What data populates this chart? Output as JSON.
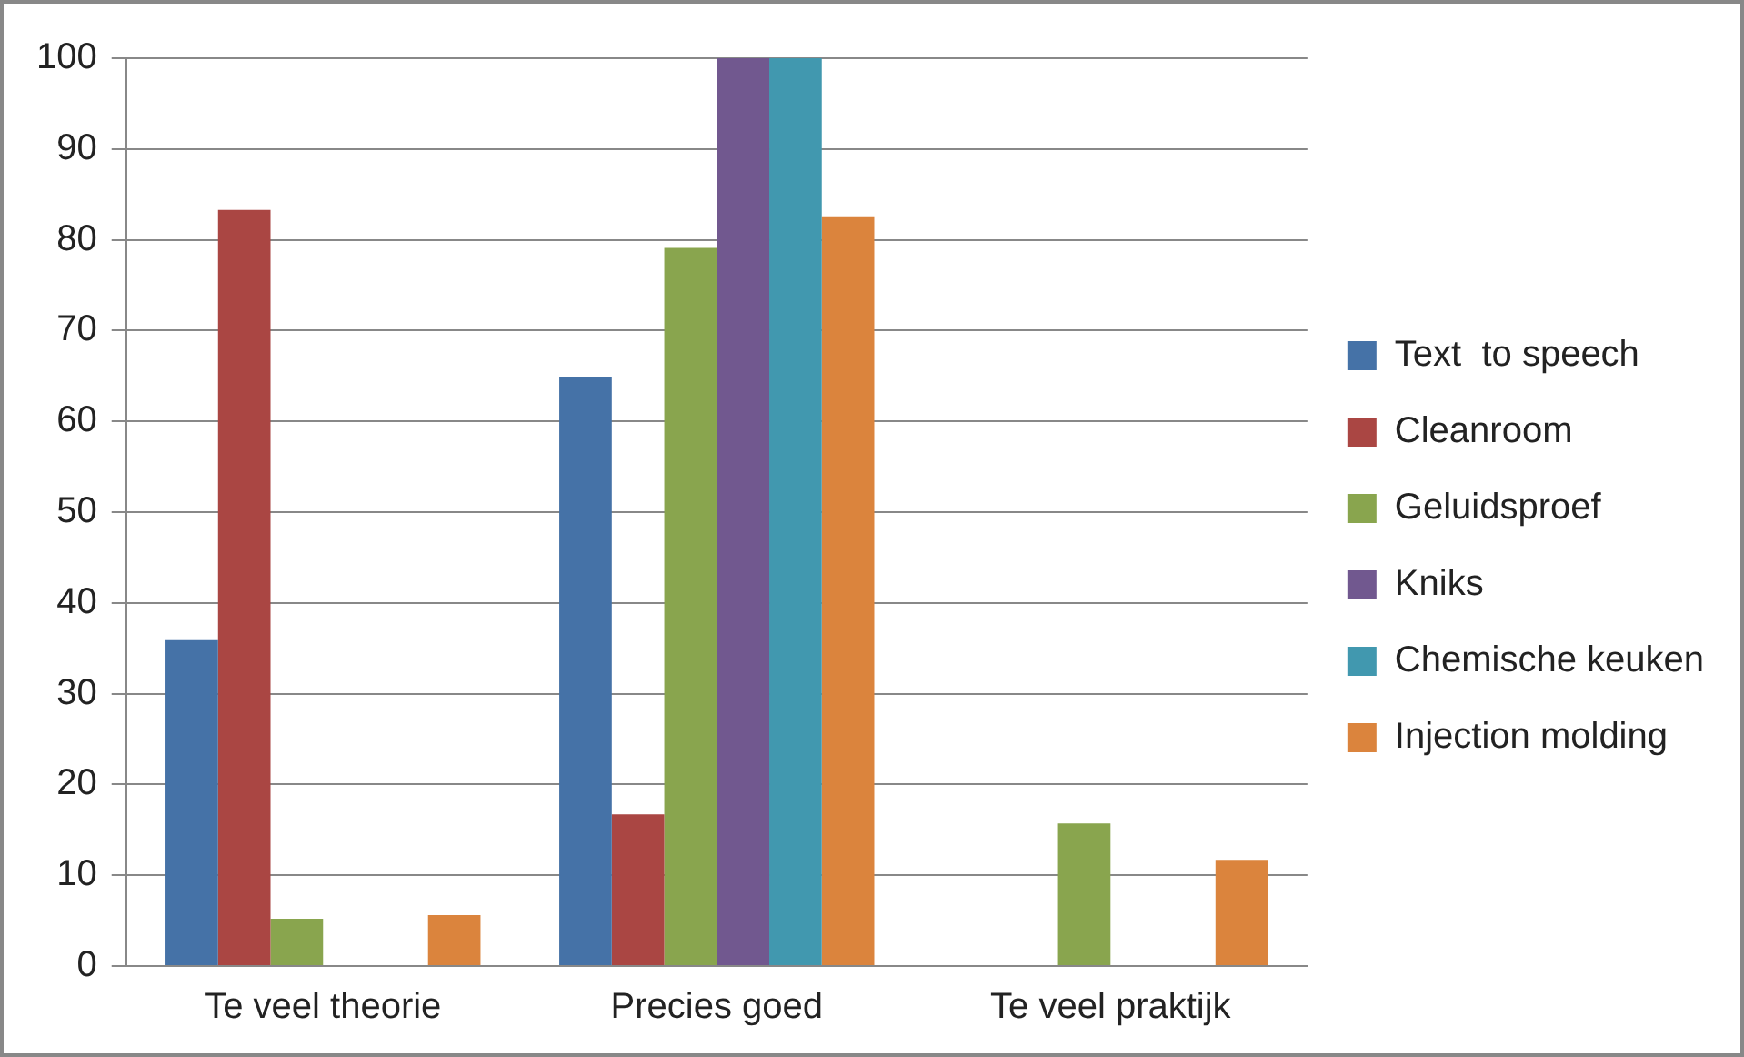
{
  "chart_data": {
    "type": "bar",
    "categories": [
      "Te veel theorie",
      "Precies goed",
      "Te veel praktijk"
    ],
    "series": [
      {
        "name": "Text  to speech",
        "color": "#4572a7",
        "values": [
          35.9,
          64.9,
          0
        ]
      },
      {
        "name": "Cleanroom",
        "color": "#aa4643",
        "values": [
          83.3,
          16.7,
          0
        ]
      },
      {
        "name": "Geluidsproef",
        "color": "#89a54e",
        "values": [
          5.2,
          79.1,
          15.7
        ]
      },
      {
        "name": "Kniks",
        "color": "#71588f",
        "values": [
          0,
          100,
          0
        ]
      },
      {
        "name": "Chemische keuken",
        "color": "#4198af",
        "values": [
          0,
          100,
          0
        ]
      },
      {
        "name": "Injection molding",
        "color": "#db843d",
        "values": [
          5.6,
          82.5,
          11.7
        ]
      }
    ],
    "ylim": [
      0,
      100
    ],
    "yticks": [
      0,
      10,
      20,
      30,
      40,
      50,
      60,
      70,
      80,
      90,
      100
    ],
    "grid": "y",
    "legend": "right"
  }
}
